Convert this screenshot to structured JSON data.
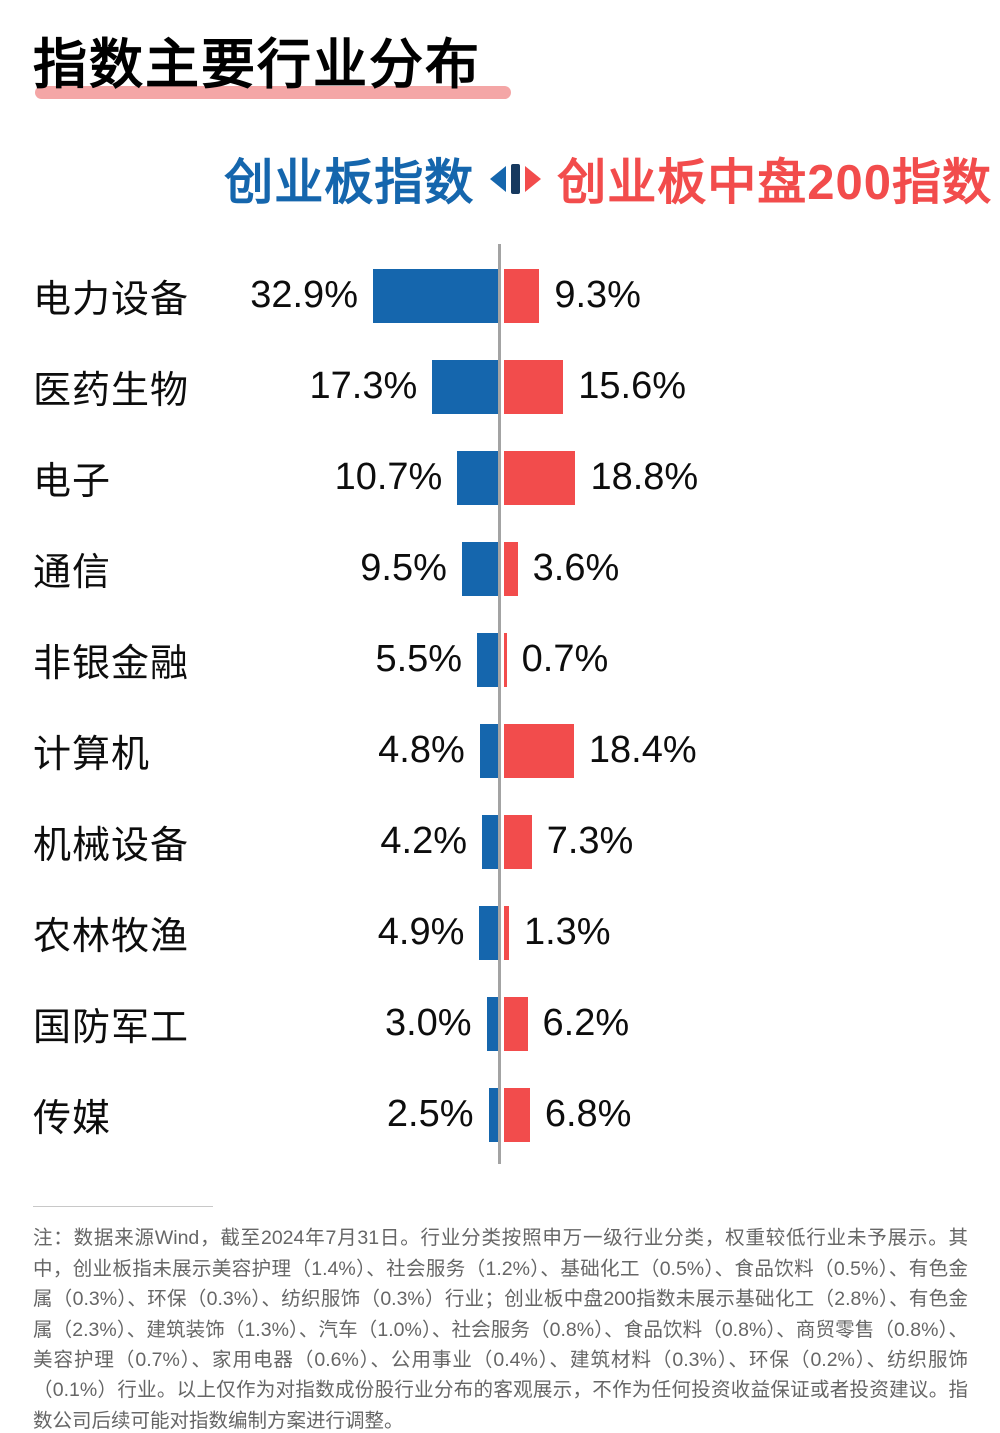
{
  "title": "指数主要行业分布",
  "legend": {
    "left_label": "创业板指数",
    "right_label": "创业板中盘200指数"
  },
  "colors": {
    "left": "#1566AD",
    "right": "#F24C4C",
    "accent_underline": "#F4A6A6",
    "legend_divider": "#16395F",
    "axis": "#A3A3A3",
    "note_text": "#666666"
  },
  "chart_data": {
    "type": "bar",
    "variant": "tornado",
    "categories": [
      "电力设备",
      "医药生物",
      "电子",
      "通信",
      "非银金融",
      "计算机",
      "机械设备",
      "农林牧渔",
      "国防军工",
      "传媒"
    ],
    "series": [
      {
        "name": "创业板指数",
        "color": "#1566AD",
        "values": [
          32.9,
          17.3,
          10.7,
          9.5,
          5.5,
          4.8,
          4.2,
          4.9,
          3.0,
          2.5
        ]
      },
      {
        "name": "创业板中盘200指数",
        "color": "#F24C4C",
        "values": [
          9.3,
          15.6,
          18.8,
          3.6,
          0.7,
          18.4,
          7.3,
          1.3,
          6.2,
          6.8
        ]
      }
    ],
    "value_suffix": "%",
    "value_decimals": 1,
    "axis_centered": true,
    "legend_position": "top"
  },
  "note": "注：数据来源Wind，截至2024年7月31日。行业分类按照申万一级行业分类，权重较低行业未予展示。其中，创业板指未展示美容护理（1.4%）、社会服务（1.2%）、基础化工（0.5%）、食品饮料（0.5%）、有色金属（0.3%）、环保（0.3%）、纺织服饰（0.3%）行业；创业板中盘200指数未展示基础化工（2.8%）、有色金属（2.3%）、建筑装饰（1.3%）、汽车（1.0%）、社会服务（0.8%）、食品饮料（0.8%）、商贸零售（0.8%）、美容护理（0.7%）、家用电器（0.6%）、公用事业（0.4%）、建筑材料（0.3%）、环保（0.2%）、纺织服饰（0.1%）行业。以上仅作为对指数成份股行业分布的客观展示，不作为任何投资收益保证或者投资建议。指数公司后续可能对指数编制方案进行调整。"
}
